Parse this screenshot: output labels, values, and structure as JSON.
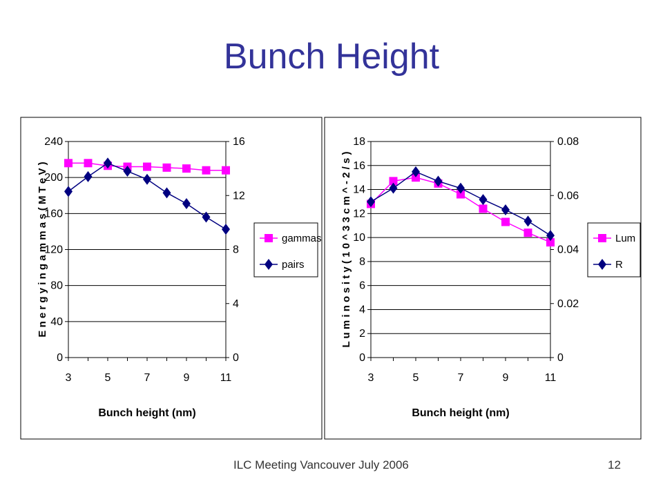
{
  "slide": {
    "title": "Bunch Height",
    "footer": "ILC Meeting Vancouver July 2006",
    "page_number": "12"
  },
  "colors": {
    "title": "#333399",
    "pink": "#FF00FF",
    "navy": "#000080",
    "grid": "#000000"
  },
  "chart_data": [
    {
      "type": "line",
      "xlabel": "Bunch height (nm)",
      "ylabel": "E n e r g y   i n   g a m m a s   ( M T e V )",
      "x": [
        3,
        4,
        5,
        6,
        7,
        8,
        9,
        10,
        11
      ],
      "x_ticks": [
        3,
        5,
        7,
        9,
        11
      ],
      "xlim": [
        3,
        11
      ],
      "ylim": [
        0,
        240
      ],
      "y_ticks": [
        0,
        40,
        80,
        120,
        160,
        200,
        240
      ],
      "y2lim": [
        0,
        16
      ],
      "y2_ticks": [
        0,
        4,
        8,
        12,
        16
      ],
      "grid": true,
      "legend_position": "right",
      "series": [
        {
          "name": "gammas",
          "axis": "left",
          "marker": "square",
          "color": "#FF00FF",
          "values": [
            216,
            216,
            213,
            212,
            212,
            211,
            210,
            208,
            208
          ]
        },
        {
          "name": "pairs",
          "axis": "right",
          "marker": "diamond",
          "color": "#000080",
          "values": [
            12.3,
            13.4,
            14.4,
            13.8,
            13.2,
            12.2,
            11.4,
            10.4,
            9.5
          ]
        }
      ]
    },
    {
      "type": "line",
      "xlabel": "Bunch height (nm)",
      "ylabel": "L u m i n o s i t y   ( 1 0 ^ 3 3   c m ^ - 2 / s )",
      "x": [
        3,
        4,
        5,
        6,
        7,
        8,
        9,
        10,
        11
      ],
      "x_ticks": [
        3,
        5,
        7,
        9,
        11
      ],
      "xlim": [
        3,
        11
      ],
      "ylim": [
        0,
        18
      ],
      "y_ticks": [
        0,
        2,
        4,
        6,
        8,
        10,
        12,
        14,
        16,
        18
      ],
      "y2lim": [
        0,
        0.08
      ],
      "y2_ticks": [
        0,
        0.02,
        0.04,
        0.06,
        0.08
      ],
      "y2_tick_labels": [
        "0",
        "0.02",
        "0.04",
        "0.06",
        "0.08"
      ],
      "grid": true,
      "legend_position": "right",
      "series": [
        {
          "name": "Lum",
          "axis": "left",
          "marker": "square",
          "color": "#FF00FF",
          "values": [
            12.8,
            14.7,
            15.0,
            14.5,
            13.6,
            12.4,
            11.3,
            10.4,
            9.6
          ]
        },
        {
          "name": "R",
          "axis": "right",
          "marker": "diamond",
          "color": "#000080",
          "values": [
            0.0577,
            0.0627,
            0.0688,
            0.0653,
            0.0627,
            0.0585,
            0.0547,
            0.0505,
            0.0452
          ]
        }
      ]
    }
  ]
}
